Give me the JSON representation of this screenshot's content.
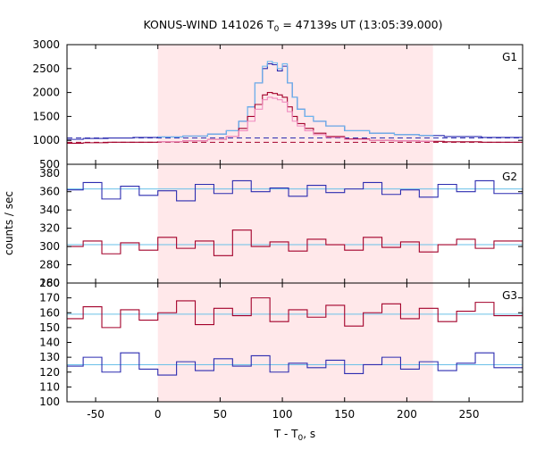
{
  "chart_data": {
    "type": "line",
    "title_main": "KONUS-WIND 141026 T",
    "title_sub": "0",
    "title_rest": " = 47139s UT (13:05:39.000)",
    "xlabel_main": "T - T",
    "xlabel_sub": "0",
    "xlabel_rest": ", s",
    "ylabel": "counts / sec",
    "xlim": [
      -73,
      293
    ],
    "x_ticks": [
      -50,
      0,
      50,
      100,
      150,
      200,
      250
    ],
    "x_tick_labels": [
      "-50",
      "0",
      "50",
      "100",
      "150",
      "200",
      "250"
    ],
    "shaded_interval": [
      0,
      221
    ],
    "colors": {
      "shade": "#ffe8ea",
      "blue": "#2c2cb0",
      "red": "#a3002a",
      "light_blue": "#6ab8f0",
      "pink": "#f08cc0",
      "fit": "#6ac0e8"
    },
    "panels": [
      {
        "label": "G1",
        "ylim": [
          500,
          3000
        ],
        "y_ticks": [
          500,
          1000,
          1500,
          2000,
          2500,
          3000
        ],
        "y_tick_labels": [
          "500",
          "1000",
          "1500",
          "2000",
          "2500",
          "3000"
        ],
        "background_levels": [
          1050,
          960
        ],
        "series": [
          {
            "color_key": "blue",
            "dashed": false,
            "x": [
              -73,
              -60,
              -40,
              -20,
              0,
              20,
              40,
              55,
              65,
              72,
              78,
              84,
              88,
              92,
              96,
              100,
              104,
              108,
              112,
              118,
              125,
              135,
              150,
              170,
              190,
              210,
              230,
              260,
              293
            ],
            "y": [
              1020,
              1040,
              1050,
              1060,
              1070,
              1090,
              1130,
              1200,
              1400,
              1700,
              2200,
              2500,
              2600,
              2580,
              2450,
              2550,
              2200,
              1900,
              1650,
              1500,
              1400,
              1300,
              1200,
              1150,
              1120,
              1100,
              1080,
              1060,
              1050
            ]
          },
          {
            "color_key": "light_blue",
            "dashed": false,
            "x": [
              0,
              20,
              40,
              55,
              65,
              72,
              78,
              84,
              88,
              92,
              96,
              100,
              104,
              108,
              112,
              118,
              125,
              135,
              150,
              170,
              190,
              210,
              221
            ],
            "y": [
              1070,
              1090,
              1130,
              1200,
              1400,
              1700,
              2200,
              2550,
              2650,
              2620,
              2500,
              2600,
              2200,
              1900,
              1650,
              1500,
              1400,
              1300,
              1200,
              1150,
              1120,
              1100,
              1080
            ]
          },
          {
            "color_key": "red",
            "dashed": false,
            "x": [
              -73,
              -60,
              -40,
              -20,
              0,
              20,
              40,
              55,
              65,
              72,
              78,
              84,
              88,
              92,
              96,
              100,
              104,
              108,
              112,
              118,
              125,
              135,
              150,
              170,
              190,
              210,
              230,
              260,
              293
            ],
            "y": [
              940,
              950,
              960,
              960,
              970,
              990,
              1020,
              1080,
              1250,
              1500,
              1750,
              1950,
              2000,
              1980,
              1950,
              1900,
              1700,
              1500,
              1350,
              1250,
              1150,
              1080,
              1030,
              1000,
              990,
              980,
              970,
              960,
              955
            ]
          },
          {
            "color_key": "pink",
            "dashed": false,
            "x": [
              0,
              20,
              40,
              55,
              65,
              72,
              78,
              84,
              88,
              92,
              96,
              100,
              104,
              108,
              112,
              118,
              125,
              135,
              150,
              170,
              190,
              210,
              221
            ],
            "y": [
              970,
              990,
              1020,
              1080,
              1200,
              1400,
              1650,
              1850,
              1900,
              1880,
              1850,
              1800,
              1600,
              1400,
              1300,
              1200,
              1120,
              1060,
              1020,
              1000,
              990,
              980,
              975
            ]
          }
        ]
      },
      {
        "label": "G2",
        "ylim": [
          260,
          390
        ],
        "y_ticks": [
          260,
          280,
          300,
          320,
          340,
          360,
          380
        ],
        "y_tick_labels": [
          "260",
          "280",
          "300",
          "320",
          "340",
          "360",
          "380"
        ],
        "fit_levels": [
          363,
          302
        ],
        "series": [
          {
            "color_key": "blue",
            "dashed": false,
            "x": [
              -73,
              -60,
              -45,
              -30,
              -15,
              0,
              15,
              30,
              45,
              60,
              75,
              90,
              105,
              120,
              135,
              150,
              165,
              180,
              195,
              210,
              225,
              240,
              255,
              270,
              293
            ],
            "y": [
              362,
              370,
              352,
              366,
              356,
              361,
              350,
              368,
              358,
              372,
              360,
              364,
              355,
              367,
              359,
              363,
              370,
              357,
              362,
              354,
              368,
              360,
              372,
              358,
              365
            ]
          },
          {
            "color_key": "red",
            "dashed": false,
            "x": [
              -73,
              -60,
              -45,
              -30,
              -15,
              0,
              15,
              30,
              45,
              60,
              75,
              90,
              105,
              120,
              135,
              150,
              165,
              180,
              195,
              210,
              225,
              240,
              255,
              270,
              293
            ],
            "y": [
              300,
              306,
              292,
              304,
              296,
              310,
              298,
              306,
              290,
              318,
              300,
              305,
              295,
              308,
              302,
              296,
              310,
              299,
              305,
              294,
              302,
              308,
              298,
              306,
              300
            ]
          }
        ]
      },
      {
        "label": "G3",
        "ylim": [
          100,
          180
        ],
        "y_ticks": [
          100,
          110,
          120,
          130,
          140,
          150,
          160,
          170,
          180
        ],
        "y_tick_labels": [
          "100",
          "110",
          "120",
          "130",
          "140",
          "150",
          "160",
          "170",
          "180"
        ],
        "fit_levels": [
          159,
          125
        ],
        "series": [
          {
            "color_key": "red",
            "dashed": false,
            "x": [
              -73,
              -60,
              -45,
              -30,
              -15,
              0,
              15,
              30,
              45,
              60,
              75,
              90,
              105,
              120,
              135,
              150,
              165,
              180,
              195,
              210,
              225,
              240,
              255,
              270,
              293
            ],
            "y": [
              156,
              164,
              150,
              162,
              155,
              160,
              168,
              152,
              163,
              158,
              170,
              154,
              162,
              157,
              165,
              151,
              160,
              166,
              156,
              163,
              154,
              161,
              167,
              158,
              164
            ]
          },
          {
            "color_key": "blue",
            "dashed": false,
            "x": [
              -73,
              -60,
              -45,
              -30,
              -15,
              0,
              15,
              30,
              45,
              60,
              75,
              90,
              105,
              120,
              135,
              150,
              165,
              180,
              195,
              210,
              225,
              240,
              255,
              270,
              293
            ],
            "y": [
              124,
              130,
              120,
              133,
              122,
              118,
              127,
              121,
              129,
              124,
              131,
              120,
              126,
              123,
              128,
              119,
              125,
              130,
              122,
              127,
              121,
              126,
              133,
              123,
              128
            ]
          }
        ]
      }
    ]
  }
}
